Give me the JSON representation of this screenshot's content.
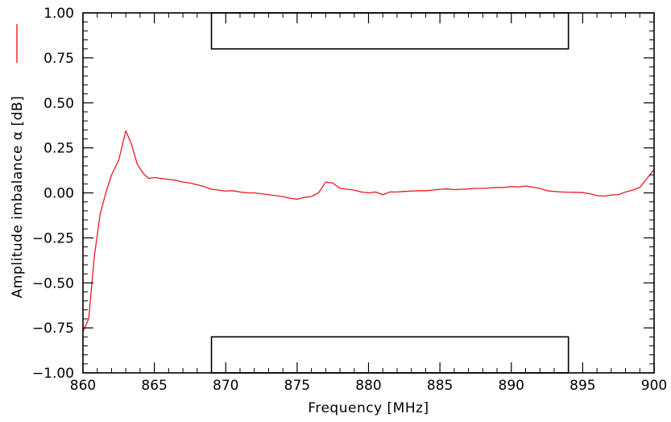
{
  "chart_data": {
    "type": "line",
    "title": "",
    "xlabel": "Frequency [MHz]",
    "ylabel": "Amplitude imbalance α [dB]",
    "xlim": [
      860,
      900
    ],
    "ylim": [
      -1.0,
      1.0
    ],
    "x_ticks": [
      860,
      865,
      870,
      875,
      880,
      885,
      890,
      895,
      900
    ],
    "x_tick_labels": [
      "860",
      "865",
      "870",
      "875",
      "880",
      "885",
      "890",
      "895",
      "900"
    ],
    "y_ticks": [
      -1.0,
      -0.75,
      -0.5,
      -0.25,
      0.0,
      0.25,
      0.5,
      0.75,
      1.0
    ],
    "y_tick_labels": [
      "−1.00",
      "−0.75",
      "−0.50",
      "−0.25",
      "0.00",
      "0.25",
      "0.50",
      "0.75",
      "1.00"
    ],
    "grid": false,
    "legend_placement": "left of y-axis, top",
    "series": [
      {
        "color": "#e8191f",
        "x": [
          860.0,
          860.4,
          860.8,
          861.2,
          861.6,
          862.0,
          862.5,
          863.0,
          863.4,
          863.8,
          864.2,
          864.6,
          865.0,
          865.5,
          866.0,
          866.5,
          867.0,
          867.5,
          868.0,
          868.5,
          869.0,
          869.5,
          870.0,
          870.5,
          871.0,
          871.5,
          872.0,
          872.5,
          873.0,
          873.5,
          874.0,
          874.5,
          875.0,
          875.5,
          876.0,
          876.5,
          877.0,
          877.5,
          878.0,
          878.5,
          879.0,
          879.5,
          880.0,
          880.5,
          881.0,
          881.5,
          882.0,
          882.5,
          883.0,
          883.5,
          884.0,
          884.5,
          885.0,
          885.5,
          886.0,
          886.5,
          887.0,
          887.5,
          888.0,
          888.5,
          889.0,
          889.5,
          890.0,
          890.5,
          891.0,
          891.5,
          892.0,
          892.5,
          893.0,
          893.5,
          894.0,
          894.5,
          895.0,
          895.5,
          896.0,
          896.5,
          897.0,
          897.5,
          898.0,
          898.5,
          899.0,
          899.5,
          900.0
        ],
        "y": [
          -0.77,
          -0.7,
          -0.35,
          -0.12,
          0.0,
          0.1,
          0.18,
          0.345,
          0.27,
          0.16,
          0.11,
          0.08,
          0.085,
          0.08,
          0.075,
          0.07,
          0.06,
          0.055,
          0.045,
          0.035,
          0.02,
          0.015,
          0.01,
          0.012,
          0.005,
          0.0,
          0.0,
          -0.005,
          -0.01,
          -0.015,
          -0.02,
          -0.03,
          -0.035,
          -0.025,
          -0.02,
          0.0,
          0.06,
          0.055,
          0.025,
          0.02,
          0.015,
          0.005,
          0.0,
          0.005,
          -0.01,
          0.005,
          0.005,
          0.008,
          0.01,
          0.012,
          0.012,
          0.015,
          0.02,
          0.022,
          0.018,
          0.02,
          0.022,
          0.025,
          0.025,
          0.028,
          0.03,
          0.03,
          0.035,
          0.033,
          0.038,
          0.032,
          0.025,
          0.012,
          0.008,
          0.005,
          0.004,
          0.003,
          0.002,
          -0.005,
          -0.015,
          -0.018,
          -0.012,
          -0.01,
          0.005,
          0.015,
          0.03,
          0.08,
          0.13
        ]
      }
    ],
    "annotations": [
      {
        "type": "mask-box",
        "color": "#000000",
        "x_range": [
          869,
          894
        ],
        "y_range": [
          0.8,
          1.0
        ]
      },
      {
        "type": "mask-box",
        "color": "#000000",
        "x_range": [
          869,
          894
        ],
        "y_range": [
          -1.0,
          -0.8
        ]
      }
    ]
  }
}
